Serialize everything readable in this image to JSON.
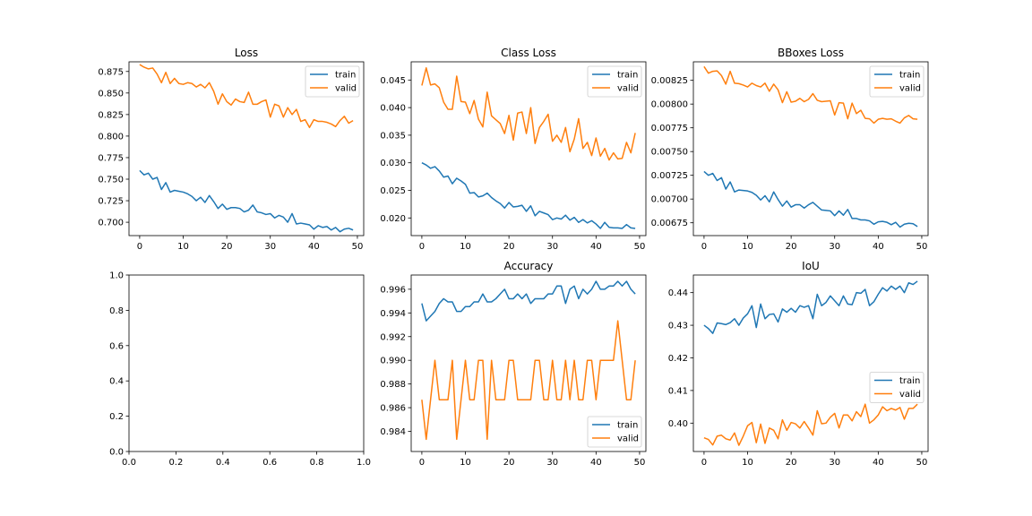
{
  "chart_data": [
    {
      "type": "line",
      "title": "Loss",
      "xlim": [
        -2.45,
        51.45
      ],
      "ylim": [
        0.6845,
        0.8862
      ],
      "xticks": [
        0,
        10,
        20,
        30,
        40,
        50
      ],
      "yticks": [
        0.7,
        0.725,
        0.75,
        0.775,
        0.8,
        0.825,
        0.85,
        0.875
      ],
      "ytick_labels": [
        "0.700",
        "0.725",
        "0.750",
        "0.775",
        "0.800",
        "0.825",
        "0.850",
        "0.875"
      ],
      "legend": "top-right",
      "series": [
        {
          "name": "train",
          "color": "#1f77b4",
          "values": [
            0.76,
            0.755,
            0.757,
            0.75,
            0.752,
            0.738,
            0.746,
            0.735,
            0.737,
            0.736,
            0.735,
            0.733,
            0.73,
            0.725,
            0.729,
            0.723,
            0.731,
            0.724,
            0.716,
            0.721,
            0.715,
            0.717,
            0.717,
            0.716,
            0.712,
            0.714,
            0.72,
            0.712,
            0.711,
            0.709,
            0.71,
            0.705,
            0.708,
            0.706,
            0.7,
            0.71,
            0.698,
            0.699,
            0.698,
            0.697,
            0.692,
            0.696,
            0.694,
            0.695,
            0.691,
            0.694,
            0.689,
            0.692,
            0.693,
            0.691
          ]
        },
        {
          "name": "valid",
          "color": "#ff7f0e",
          "values": [
            0.883,
            0.88,
            0.878,
            0.879,
            0.872,
            0.862,
            0.874,
            0.861,
            0.867,
            0.861,
            0.86,
            0.862,
            0.861,
            0.857,
            0.86,
            0.856,
            0.862,
            0.852,
            0.837,
            0.849,
            0.84,
            0.836,
            0.843,
            0.84,
            0.839,
            0.851,
            0.837,
            0.837,
            0.84,
            0.842,
            0.822,
            0.837,
            0.835,
            0.822,
            0.833,
            0.825,
            0.831,
            0.817,
            0.819,
            0.81,
            0.819,
            0.817,
            0.817,
            0.816,
            0.814,
            0.811,
            0.818,
            0.823,
            0.815,
            0.818
          ]
        }
      ]
    },
    {
      "type": "line",
      "title": "Class Loss",
      "xlim": [
        -2.45,
        51.45
      ],
      "ylim": [
        0.0168,
        0.0483
      ],
      "xticks": [
        0,
        10,
        20,
        30,
        40,
        50
      ],
      "yticks": [
        0.02,
        0.025,
        0.03,
        0.035,
        0.04,
        0.045
      ],
      "ytick_labels": [
        "0.020",
        "0.025",
        "0.030",
        "0.035",
        "0.040",
        "0.045"
      ],
      "legend": "top-right",
      "series": [
        {
          "name": "train",
          "color": "#1f77b4",
          "values": [
            0.03,
            0.0296,
            0.029,
            0.0293,
            0.0285,
            0.0274,
            0.0276,
            0.0262,
            0.0272,
            0.0267,
            0.0261,
            0.0245,
            0.0246,
            0.0238,
            0.024,
            0.0245,
            0.0237,
            0.0231,
            0.0226,
            0.0218,
            0.0228,
            0.022,
            0.0221,
            0.0223,
            0.0212,
            0.0222,
            0.0204,
            0.0212,
            0.0209,
            0.0206,
            0.0197,
            0.02,
            0.0198,
            0.0205,
            0.0196,
            0.0201,
            0.0192,
            0.0197,
            0.0191,
            0.0195,
            0.0189,
            0.0181,
            0.0192,
            0.0183,
            0.0182,
            0.0182,
            0.0181,
            0.0188,
            0.0182,
            0.0181
          ]
        },
        {
          "name": "valid",
          "color": "#ff7f0e",
          "values": [
            0.044,
            0.0472,
            0.0441,
            0.0443,
            0.0436,
            0.041,
            0.0397,
            0.0397,
            0.0457,
            0.0411,
            0.041,
            0.0389,
            0.0413,
            0.0379,
            0.0365,
            0.0428,
            0.0385,
            0.0378,
            0.0371,
            0.0353,
            0.0386,
            0.0341,
            0.039,
            0.0392,
            0.0353,
            0.04,
            0.0335,
            0.0364,
            0.0375,
            0.0388,
            0.0339,
            0.035,
            0.0337,
            0.0364,
            0.032,
            0.0343,
            0.038,
            0.0326,
            0.0337,
            0.0313,
            0.0345,
            0.0312,
            0.0326,
            0.0305,
            0.0318,
            0.0307,
            0.0308,
            0.0337,
            0.0318,
            0.0354
          ]
        }
      ]
    },
    {
      "type": "line",
      "title": "BBoxes Loss",
      "xlim": [
        -2.45,
        51.45
      ],
      "ylim": [
        0.006615,
        0.008445
      ],
      "xticks": [
        0,
        10,
        20,
        30,
        40,
        50
      ],
      "yticks": [
        0.00675,
        0.007,
        0.00725,
        0.0075,
        0.00775,
        0.008,
        0.00825
      ],
      "ytick_labels": [
        "0.00675",
        "0.00700",
        "0.00725",
        "0.00750",
        "0.00775",
        "0.00800",
        "0.00825"
      ],
      "legend": "top-right",
      "series": [
        {
          "name": "train",
          "color": "#1f77b4",
          "values": [
            0.00729,
            0.00725,
            0.00727,
            0.007195,
            0.007225,
            0.007105,
            0.00718,
            0.007075,
            0.007095,
            0.00709,
            0.007085,
            0.00707,
            0.00704,
            0.00699,
            0.007035,
            0.00697,
            0.007075,
            0.006995,
            0.006925,
            0.00698,
            0.006915,
            0.00694,
            0.00694,
            0.006905,
            0.00694,
            0.006965,
            0.006925,
            0.006885,
            0.00688,
            0.006875,
            0.006825,
            0.006875,
            0.00683,
            0.00689,
            0.006795,
            0.006795,
            0.00678,
            0.00678,
            0.00677,
            0.006735,
            0.00676,
            0.006765,
            0.006755,
            0.00673,
            0.006755,
            0.006705,
            0.006735,
            0.006745,
            0.00674,
            0.00671
          ]
        },
        {
          "name": "valid",
          "color": "#ff7f0e",
          "values": [
            0.008395,
            0.008325,
            0.008345,
            0.00835,
            0.0083,
            0.00821,
            0.008345,
            0.00822,
            0.008215,
            0.0082,
            0.00818,
            0.00822,
            0.008195,
            0.00818,
            0.00822,
            0.008135,
            0.00821,
            0.00815,
            0.008015,
            0.00813,
            0.00802,
            0.00803,
            0.00806,
            0.008025,
            0.00805,
            0.00811,
            0.00804,
            0.008025,
            0.00803,
            0.008035,
            0.007885,
            0.008015,
            0.00801,
            0.007845,
            0.00801,
            0.0079,
            0.007935,
            0.00785,
            0.007845,
            0.0078,
            0.00784,
            0.00785,
            0.00784,
            0.007845,
            0.00782,
            0.0078,
            0.007855,
            0.00788,
            0.007845,
            0.00784
          ]
        }
      ]
    },
    {
      "type": "line",
      "title": "",
      "xlim": [
        0,
        1
      ],
      "ylim": [
        0,
        1
      ],
      "xticks": [
        0,
        0.2,
        0.4,
        0.6,
        0.8,
        1.0
      ],
      "xtick_labels": [
        "0.0",
        "0.2",
        "0.4",
        "0.6",
        "0.8",
        "1.0"
      ],
      "yticks": [
        0,
        0.2,
        0.4,
        0.6,
        0.8,
        1.0
      ],
      "ytick_labels": [
        "0.0",
        "0.2",
        "0.4",
        "0.6",
        "0.8",
        "1.0"
      ],
      "legend": "none",
      "series": []
    },
    {
      "type": "line",
      "title": "Accuracy",
      "xlim": [
        -2.45,
        51.45
      ],
      "ylim": [
        0.9823,
        0.9972
      ],
      "xticks": [
        0,
        10,
        20,
        30,
        40,
        50
      ],
      "yticks": [
        0.984,
        0.986,
        0.988,
        0.99,
        0.992,
        0.994,
        0.996
      ],
      "ytick_labels": [
        "0.984",
        "0.986",
        "0.988",
        "0.990",
        "0.992",
        "0.994",
        "0.996"
      ],
      "legend": "bottom-right",
      "series": [
        {
          "name": "train",
          "color": "#1f77b4",
          "values": [
            0.9948,
            0.99333,
            0.99373,
            0.99413,
            0.9948,
            0.9952,
            0.99493,
            0.99493,
            0.99413,
            0.99413,
            0.99453,
            0.99453,
            0.99493,
            0.99493,
            0.9956,
            0.99493,
            0.99493,
            0.9952,
            0.9956,
            0.996,
            0.9952,
            0.9952,
            0.9956,
            0.9952,
            0.9956,
            0.9948,
            0.9952,
            0.9952,
            0.9952,
            0.9956,
            0.9956,
            0.99627,
            0.99627,
            0.9948,
            0.996,
            0.99627,
            0.9952,
            0.996,
            0.9956,
            0.996,
            0.99667,
            0.996,
            0.996,
            0.99627,
            0.99627,
            0.99667,
            0.99627,
            0.99667,
            0.996,
            0.9956
          ]
        },
        {
          "name": "valid",
          "color": "#ff7f0e",
          "values": [
            0.98667,
            0.98333,
            0.98667,
            0.99,
            0.98667,
            0.98667,
            0.98667,
            0.99,
            0.98333,
            0.98667,
            0.99,
            0.98667,
            0.98667,
            0.99,
            0.99,
            0.98333,
            0.99,
            0.98667,
            0.98667,
            0.98667,
            0.99,
            0.99,
            0.98667,
            0.98667,
            0.98667,
            0.98667,
            0.99,
            0.99,
            0.98667,
            0.98667,
            0.99,
            0.98667,
            0.98667,
            0.99,
            0.98667,
            0.99,
            0.98667,
            0.98667,
            0.99,
            0.99,
            0.98667,
            0.99,
            0.99,
            0.99,
            0.99,
            0.99333,
            0.99,
            0.98667,
            0.98667,
            0.99
          ]
        }
      ]
    },
    {
      "type": "line",
      "title": "IoU",
      "xlim": [
        -2.45,
        51.45
      ],
      "ylim": [
        0.3913,
        0.4454
      ],
      "xticks": [
        0,
        10,
        20,
        30,
        40,
        50
      ],
      "yticks": [
        0.4,
        0.41,
        0.42,
        0.43,
        0.44
      ],
      "ytick_labels": [
        "0.40",
        "0.41",
        "0.42",
        "0.43",
        "0.44"
      ],
      "legend": "right",
      "series": [
        {
          "name": "train",
          "color": "#1f77b4",
          "values": [
            0.43,
            0.429,
            0.4275,
            0.4307,
            0.4305,
            0.4302,
            0.4308,
            0.432,
            0.43,
            0.4322,
            0.4335,
            0.436,
            0.4293,
            0.4365,
            0.432,
            0.4333,
            0.4335,
            0.431,
            0.435,
            0.434,
            0.4352,
            0.434,
            0.436,
            0.4355,
            0.436,
            0.432,
            0.4395,
            0.436,
            0.437,
            0.439,
            0.4375,
            0.436,
            0.439,
            0.4365,
            0.4363,
            0.44,
            0.4398,
            0.441,
            0.436,
            0.4372,
            0.4395,
            0.4415,
            0.4405,
            0.442,
            0.441,
            0.442,
            0.44,
            0.443,
            0.4425,
            0.4435
          ]
        },
        {
          "name": "valid",
          "color": "#ff7f0e",
          "values": [
            0.3955,
            0.395,
            0.3933,
            0.396,
            0.3963,
            0.3952,
            0.3948,
            0.397,
            0.3932,
            0.396,
            0.3992,
            0.4002,
            0.394,
            0.3997,
            0.3938,
            0.3985,
            0.3978,
            0.3952,
            0.401,
            0.3978,
            0.4002,
            0.3998,
            0.3985,
            0.4005,
            0.3985,
            0.3963,
            0.4038,
            0.3998,
            0.4,
            0.4018,
            0.403,
            0.3985,
            0.4025,
            0.4025,
            0.4007,
            0.4035,
            0.402,
            0.4058,
            0.4,
            0.401,
            0.4025,
            0.405,
            0.4038,
            0.4045,
            0.404,
            0.4048,
            0.4012,
            0.4045,
            0.4045,
            0.4058
          ]
        }
      ]
    }
  ]
}
